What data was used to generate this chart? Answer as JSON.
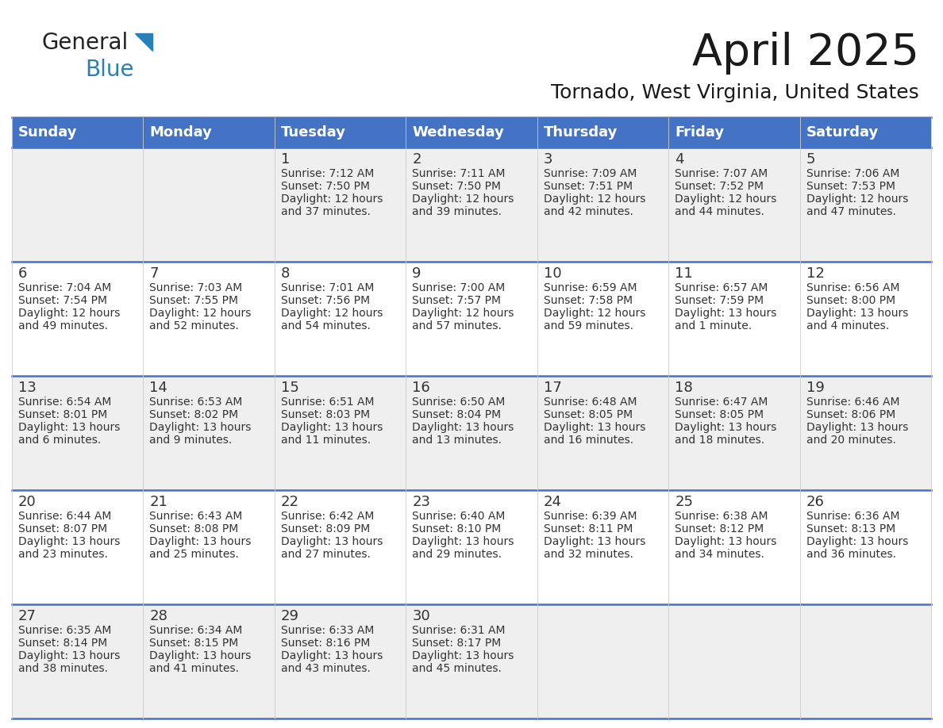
{
  "title": "April 2025",
  "subtitle": "Tornado, West Virginia, United States",
  "header_color": "#4472C4",
  "header_text_color": "#FFFFFF",
  "row_bg_colors": [
    "#EFEFEF",
    "#FFFFFF",
    "#EFEFEF",
    "#FFFFFF",
    "#EFEFEF"
  ],
  "border_color": "#4472C4",
  "text_color": "#333333",
  "days_of_week": [
    "Sunday",
    "Monday",
    "Tuesday",
    "Wednesday",
    "Thursday",
    "Friday",
    "Saturday"
  ],
  "weeks": [
    [
      {
        "day": "",
        "info": ""
      },
      {
        "day": "",
        "info": ""
      },
      {
        "day": "1",
        "info": "Sunrise: 7:12 AM\nSunset: 7:50 PM\nDaylight: 12 hours\nand 37 minutes."
      },
      {
        "day": "2",
        "info": "Sunrise: 7:11 AM\nSunset: 7:50 PM\nDaylight: 12 hours\nand 39 minutes."
      },
      {
        "day": "3",
        "info": "Sunrise: 7:09 AM\nSunset: 7:51 PM\nDaylight: 12 hours\nand 42 minutes."
      },
      {
        "day": "4",
        "info": "Sunrise: 7:07 AM\nSunset: 7:52 PM\nDaylight: 12 hours\nand 44 minutes."
      },
      {
        "day": "5",
        "info": "Sunrise: 7:06 AM\nSunset: 7:53 PM\nDaylight: 12 hours\nand 47 minutes."
      }
    ],
    [
      {
        "day": "6",
        "info": "Sunrise: 7:04 AM\nSunset: 7:54 PM\nDaylight: 12 hours\nand 49 minutes."
      },
      {
        "day": "7",
        "info": "Sunrise: 7:03 AM\nSunset: 7:55 PM\nDaylight: 12 hours\nand 52 minutes."
      },
      {
        "day": "8",
        "info": "Sunrise: 7:01 AM\nSunset: 7:56 PM\nDaylight: 12 hours\nand 54 minutes."
      },
      {
        "day": "9",
        "info": "Sunrise: 7:00 AM\nSunset: 7:57 PM\nDaylight: 12 hours\nand 57 minutes."
      },
      {
        "day": "10",
        "info": "Sunrise: 6:59 AM\nSunset: 7:58 PM\nDaylight: 12 hours\nand 59 minutes."
      },
      {
        "day": "11",
        "info": "Sunrise: 6:57 AM\nSunset: 7:59 PM\nDaylight: 13 hours\nand 1 minute."
      },
      {
        "day": "12",
        "info": "Sunrise: 6:56 AM\nSunset: 8:00 PM\nDaylight: 13 hours\nand 4 minutes."
      }
    ],
    [
      {
        "day": "13",
        "info": "Sunrise: 6:54 AM\nSunset: 8:01 PM\nDaylight: 13 hours\nand 6 minutes."
      },
      {
        "day": "14",
        "info": "Sunrise: 6:53 AM\nSunset: 8:02 PM\nDaylight: 13 hours\nand 9 minutes."
      },
      {
        "day": "15",
        "info": "Sunrise: 6:51 AM\nSunset: 8:03 PM\nDaylight: 13 hours\nand 11 minutes."
      },
      {
        "day": "16",
        "info": "Sunrise: 6:50 AM\nSunset: 8:04 PM\nDaylight: 13 hours\nand 13 minutes."
      },
      {
        "day": "17",
        "info": "Sunrise: 6:48 AM\nSunset: 8:05 PM\nDaylight: 13 hours\nand 16 minutes."
      },
      {
        "day": "18",
        "info": "Sunrise: 6:47 AM\nSunset: 8:05 PM\nDaylight: 13 hours\nand 18 minutes."
      },
      {
        "day": "19",
        "info": "Sunrise: 6:46 AM\nSunset: 8:06 PM\nDaylight: 13 hours\nand 20 minutes."
      }
    ],
    [
      {
        "day": "20",
        "info": "Sunrise: 6:44 AM\nSunset: 8:07 PM\nDaylight: 13 hours\nand 23 minutes."
      },
      {
        "day": "21",
        "info": "Sunrise: 6:43 AM\nSunset: 8:08 PM\nDaylight: 13 hours\nand 25 minutes."
      },
      {
        "day": "22",
        "info": "Sunrise: 6:42 AM\nSunset: 8:09 PM\nDaylight: 13 hours\nand 27 minutes."
      },
      {
        "day": "23",
        "info": "Sunrise: 6:40 AM\nSunset: 8:10 PM\nDaylight: 13 hours\nand 29 minutes."
      },
      {
        "day": "24",
        "info": "Sunrise: 6:39 AM\nSunset: 8:11 PM\nDaylight: 13 hours\nand 32 minutes."
      },
      {
        "day": "25",
        "info": "Sunrise: 6:38 AM\nSunset: 8:12 PM\nDaylight: 13 hours\nand 34 minutes."
      },
      {
        "day": "26",
        "info": "Sunrise: 6:36 AM\nSunset: 8:13 PM\nDaylight: 13 hours\nand 36 minutes."
      }
    ],
    [
      {
        "day": "27",
        "info": "Sunrise: 6:35 AM\nSunset: 8:14 PM\nDaylight: 13 hours\nand 38 minutes."
      },
      {
        "day": "28",
        "info": "Sunrise: 6:34 AM\nSunset: 8:15 PM\nDaylight: 13 hours\nand 41 minutes."
      },
      {
        "day": "29",
        "info": "Sunrise: 6:33 AM\nSunset: 8:16 PM\nDaylight: 13 hours\nand 43 minutes."
      },
      {
        "day": "30",
        "info": "Sunrise: 6:31 AM\nSunset: 8:17 PM\nDaylight: 13 hours\nand 45 minutes."
      },
      {
        "day": "",
        "info": ""
      },
      {
        "day": "",
        "info": ""
      },
      {
        "day": "",
        "info": ""
      }
    ]
  ],
  "logo_text1": "General",
  "logo_text2": "Blue",
  "logo_color1": "#222222",
  "logo_color2": "#2980B9",
  "logo_triangle_color": "#2980B9",
  "title_fontsize": 40,
  "subtitle_fontsize": 18,
  "header_fontsize": 13,
  "day_num_fontsize": 13,
  "info_fontsize": 10
}
